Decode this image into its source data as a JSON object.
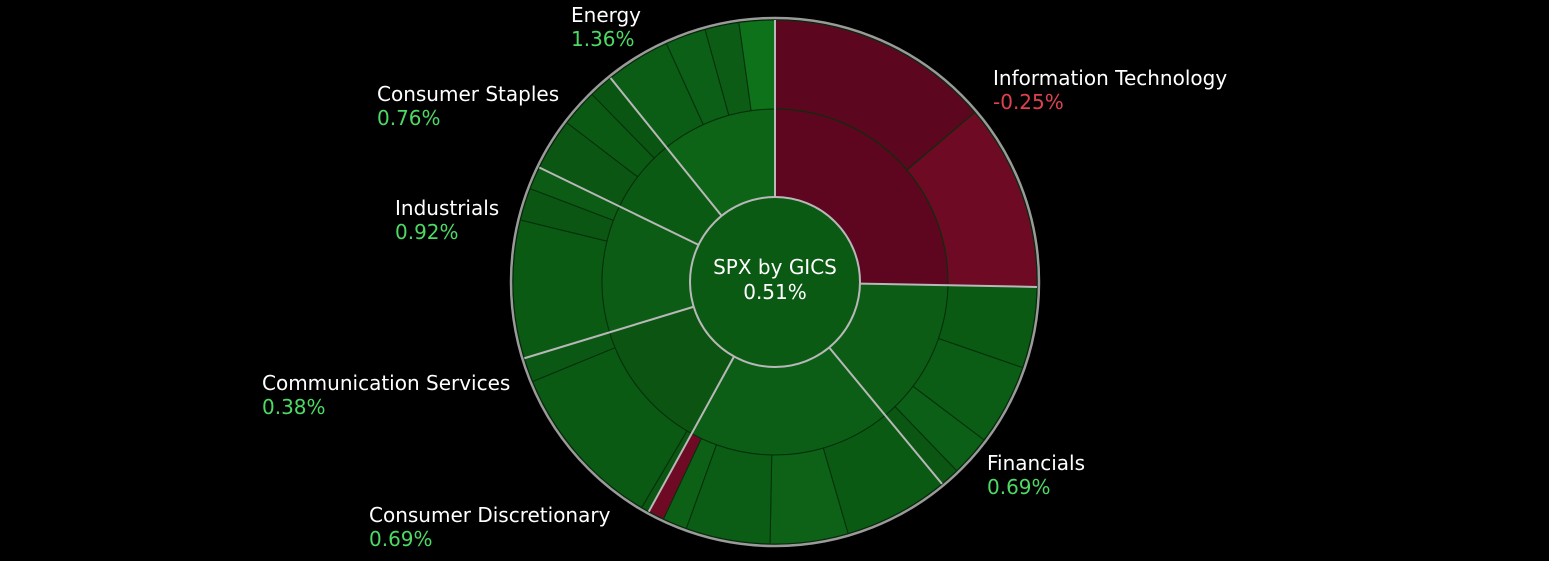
{
  "chart_data": {
    "type": "sunburst",
    "title": "SPX by GICS",
    "value": "0.51%",
    "center": {
      "title": "SPX by GICS",
      "value": "0.51%"
    },
    "colors": {
      "positive_text": "#4cd964",
      "negative_text": "#e04050",
      "center_fill": "#0b5a14",
      "ring_stroke": "#b8b8b8",
      "outer_border": "#9a9a9a"
    },
    "sectors": [
      {
        "name": "Information Technology",
        "change": "-0.25%",
        "sign": "negative",
        "weight": 25.3,
        "inner_color": "#5e0620",
        "children": [
          {
            "weight": 13.8,
            "color": "#5c0620"
          },
          {
            "weight": 11.5,
            "color": "#6e0a24"
          }
        ]
      },
      {
        "name": "Financials",
        "change": "0.69%",
        "sign": "positive",
        "weight": 13.7,
        "inner_color": "#0c5c15",
        "children": [
          {
            "weight": 5.0,
            "color": "#0a5a13"
          },
          {
            "weight": 5.0,
            "color": "#0b5c14"
          },
          {
            "weight": 2.5,
            "color": "#0c5f16"
          },
          {
            "weight": 1.2,
            "color": "#0a5612"
          }
        ]
      },
      {
        "name": "Consumer Discretionary",
        "change": "0.69%",
        "sign": "positive",
        "weight": 19.0,
        "inner_color": "#0c5e16",
        "children": [
          {
            "weight": 6.5,
            "color": "#0a5a13"
          },
          {
            "weight": 4.8,
            "color": "#0d6217"
          },
          {
            "weight": 5.2,
            "color": "#0b5c14"
          },
          {
            "weight": 1.5,
            "color": "#0d6117"
          },
          {
            "weight": 1.0,
            "color": "#6e0a24"
          }
        ]
      },
      {
        "name": "Communication Services",
        "change": "0.38%",
        "sign": "positive",
        "weight": 12.3,
        "inner_color": "#0b5412",
        "children": [
          {
            "weight": 0.5,
            "color": "#0a5612"
          },
          {
            "weight": 10.3,
            "color": "#0a5a13"
          },
          {
            "weight": 1.5,
            "color": "#0b5814"
          }
        ]
      },
      {
        "name": "Industrials",
        "change": "0.92%",
        "sign": "positive",
        "weight": 11.9,
        "inner_color": "#0c5c15",
        "children": [
          {
            "weight": 8.5,
            "color": "#0b5a14"
          },
          {
            "weight": 2.0,
            "color": "#0a5612"
          },
          {
            "weight": 1.4,
            "color": "#0c5c15"
          }
        ]
      },
      {
        "name": "Consumer Staples",
        "change": "0.76%",
        "sign": "positive",
        "weight": 7.0,
        "inner_color": "#0b5a14",
        "children": [
          {
            "weight": 3.2,
            "color": "#0a5612"
          },
          {
            "weight": 2.3,
            "color": "#0b5a14"
          },
          {
            "weight": 1.5,
            "color": "#0a5512"
          }
        ]
      },
      {
        "name": "Energy",
        "change": "1.36%",
        "sign": "positive",
        "weight": 10.8,
        "inner_color": "#0d6417",
        "children": [
          {
            "weight": 4.0,
            "color": "#0b5c14"
          },
          {
            "weight": 2.5,
            "color": "#0c5f16"
          },
          {
            "weight": 2.1,
            "color": "#0c5c15"
          },
          {
            "weight": 2.2,
            "color": "#0e721a"
          }
        ]
      }
    ]
  }
}
